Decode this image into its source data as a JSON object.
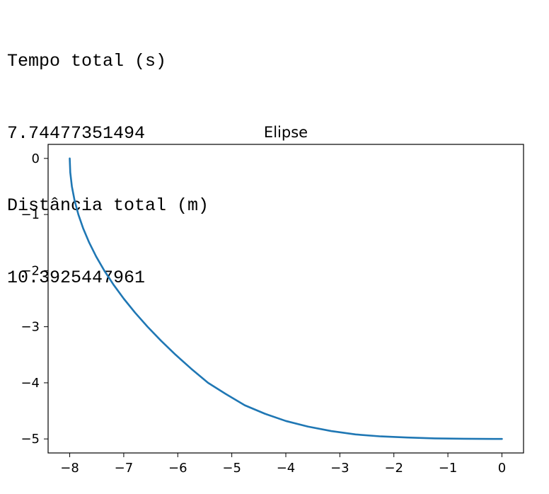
{
  "output": {
    "lines": [
      "Tempo total (s)",
      "7.74477351494",
      "Distância total (m)",
      "10.3925447961"
    ]
  },
  "chart_data": {
    "type": "line",
    "title": "Elipse",
    "xlabel": "",
    "ylabel": "",
    "xlim": [
      -8.4,
      0.4
    ],
    "ylim": [
      -5.25,
      0.25
    ],
    "xticks": [
      -8,
      -7,
      -6,
      -5,
      -4,
      -3,
      -2,
      -1,
      0
    ],
    "yticks": [
      0,
      -1,
      -2,
      -3,
      -4,
      -5
    ],
    "grid": false,
    "series": [
      {
        "color": "#1f77b4",
        "x": [
          -8.0,
          -7.99,
          -7.96,
          -7.91,
          -7.84,
          -7.75,
          -7.64,
          -7.51,
          -7.36,
          -7.19,
          -7.0,
          -6.79,
          -6.56,
          -6.31,
          -6.04,
          -5.75,
          -5.44,
          -5.11,
          -4.76,
          -4.39,
          -4.0,
          -3.59,
          -3.16,
          -2.71,
          -2.24,
          -1.75,
          -1.24,
          -0.71,
          -0.16,
          0.0
        ],
        "y": [
          0.0,
          -0.25,
          -0.5,
          -0.75,
          -1.0,
          -1.25,
          -1.5,
          -1.75,
          -2.0,
          -2.25,
          -2.5,
          -2.75,
          -3.0,
          -3.25,
          -3.5,
          -3.75,
          -4.0,
          -4.2,
          -4.4,
          -4.55,
          -4.68,
          -4.78,
          -4.86,
          -4.92,
          -4.955,
          -4.975,
          -4.99,
          -4.997,
          -5.0,
          -5.0
        ]
      }
    ]
  }
}
